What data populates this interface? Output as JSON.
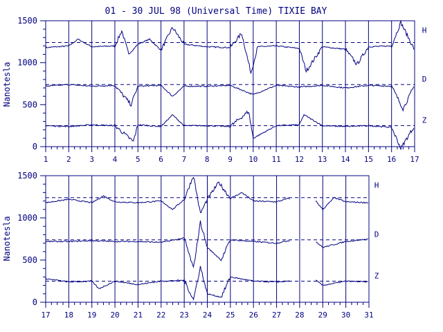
{
  "title": "01 - 30 JUL 98 (Universal Time) TIXIE BAY",
  "colors": {
    "ink": "#000080",
    "background": "#ffffff"
  },
  "chart_data": [
    {
      "type": "line",
      "panel": "top",
      "ylabel": "Nanotesla",
      "ylim": [
        0,
        1500
      ],
      "y_ticks": [
        "0",
        "500",
        "1000",
        "1500"
      ],
      "x_range_days": [
        1,
        17
      ],
      "x_tick_labels": [
        "1",
        "2",
        "3",
        "4",
        "5",
        "6",
        "7",
        "8",
        "9",
        "10",
        "11",
        "12",
        "13",
        "14",
        "15",
        "16",
        "17"
      ],
      "vertical_gridlines": "at each day",
      "reference_lines": [
        {
          "component": "H",
          "value": 1240
        },
        {
          "component": "D",
          "value": 740
        },
        {
          "component": "Z",
          "value": 250
        }
      ],
      "series": [
        {
          "name": "H",
          "baseline": 1190,
          "points": [
            [
              1,
              1180
            ],
            [
              2,
              1200
            ],
            [
              2.4,
              1280
            ],
            [
              3,
              1190
            ],
            [
              4,
              1200
            ],
            [
              4.3,
              1380
            ],
            [
              4.6,
              1100
            ],
            [
              5,
              1220
            ],
            [
              5.5,
              1280
            ],
            [
              6,
              1150
            ],
            [
              6.5,
              1420
            ],
            [
              7,
              1220
            ],
            [
              8,
              1190
            ],
            [
              9,
              1180
            ],
            [
              9.5,
              1350
            ],
            [
              9.9,
              880
            ],
            [
              10.2,
              1190
            ],
            [
              11,
              1200
            ],
            [
              12,
              1170
            ],
            [
              12.3,
              900
            ],
            [
              13,
              1190
            ],
            [
              14,
              1160
            ],
            [
              14.5,
              980
            ],
            [
              15,
              1190
            ],
            [
              16,
              1200
            ],
            [
              16.4,
              1480
            ],
            [
              17,
              1150
            ]
          ]
        },
        {
          "name": "D",
          "baseline": 720,
          "points": [
            [
              1,
              720
            ],
            [
              2,
              740
            ],
            [
              3,
              720
            ],
            [
              4,
              730
            ],
            [
              4.7,
              500
            ],
            [
              5,
              720
            ],
            [
              6,
              730
            ],
            [
              6.5,
              600
            ],
            [
              7,
              720
            ],
            [
              8,
              720
            ],
            [
              9,
              730
            ],
            [
              10,
              620
            ],
            [
              11,
              730
            ],
            [
              12,
              710
            ],
            [
              13,
              730
            ],
            [
              14,
              700
            ],
            [
              15,
              730
            ],
            [
              16,
              720
            ],
            [
              16.5,
              450
            ],
            [
              17,
              730
            ]
          ]
        },
        {
          "name": "Z",
          "baseline": 250,
          "points": [
            [
              1,
              250
            ],
            [
              2,
              240
            ],
            [
              3,
              260
            ],
            [
              4,
              250
            ],
            [
              4.8,
              60
            ],
            [
              5,
              260
            ],
            [
              6,
              240
            ],
            [
              6.5,
              380
            ],
            [
              7,
              250
            ],
            [
              8,
              250
            ],
            [
              9,
              240
            ],
            [
              9.8,
              420
            ],
            [
              10,
              100
            ],
            [
              11,
              250
            ],
            [
              12,
              260
            ],
            [
              12.2,
              380
            ],
            [
              13,
              250
            ],
            [
              14,
              240
            ],
            [
              15,
              250
            ],
            [
              16,
              230
            ],
            [
              16.4,
              -20
            ],
            [
              17,
              250
            ]
          ]
        }
      ],
      "series_labels": [
        "H",
        "D",
        "Z"
      ]
    },
    {
      "type": "line",
      "panel": "bottom",
      "ylabel": "Nanotesla",
      "ylim": [
        0,
        1500
      ],
      "y_ticks": [
        "0",
        "500",
        "1000",
        "1500"
      ],
      "x_range_days": [
        17,
        31
      ],
      "x_tick_labels": [
        "17",
        "18",
        "19",
        "20",
        "21",
        "22",
        "23",
        "24",
        "25",
        "26",
        "27",
        "28",
        "29",
        "30",
        "31"
      ],
      "vertical_gridlines": "at each day",
      "reference_lines": [
        {
          "component": "H",
          "value": 1240
        },
        {
          "component": "D",
          "value": 740
        },
        {
          "component": "Z",
          "value": 250
        }
      ],
      "data_gap_days": [
        27.6,
        28.7
      ],
      "series": [
        {
          "name": "H",
          "baseline": 1190,
          "points": [
            [
              17,
              1180
            ],
            [
              18,
              1220
            ],
            [
              19,
              1180
            ],
            [
              19.5,
              1260
            ],
            [
              20,
              1190
            ],
            [
              21,
              1180
            ],
            [
              22,
              1200
            ],
            [
              22.5,
              1100
            ],
            [
              23,
              1220
            ],
            [
              23.4,
              1500
            ],
            [
              23.7,
              1050
            ],
            [
              24,
              1220
            ],
            [
              24.5,
              1420
            ],
            [
              25,
              1230
            ],
            [
              25.5,
              1300
            ],
            [
              26,
              1200
            ],
            [
              27,
              1190
            ],
            [
              27.5,
              1230
            ],
            [
              28.7,
              1200
            ],
            [
              29,
              1100
            ],
            [
              29.5,
              1240
            ],
            [
              30,
              1190
            ],
            [
              31,
              1180
            ]
          ]
        },
        {
          "name": "D",
          "baseline": 720,
          "points": [
            [
              17,
              720
            ],
            [
              18,
              720
            ],
            [
              19,
              730
            ],
            [
              20,
              720
            ],
            [
              21,
              720
            ],
            [
              22,
              710
            ],
            [
              23,
              760
            ],
            [
              23.4,
              400
            ],
            [
              23.7,
              950
            ],
            [
              24,
              650
            ],
            [
              24.6,
              500
            ],
            [
              25,
              740
            ],
            [
              26,
              720
            ],
            [
              27,
              700
            ],
            [
              27.5,
              730
            ],
            [
              28.7,
              720
            ],
            [
              29,
              650
            ],
            [
              30,
              720
            ],
            [
              31,
              750
            ]
          ]
        },
        {
          "name": "Z",
          "baseline": 250,
          "points": [
            [
              17,
              280
            ],
            [
              18,
              240
            ],
            [
              19,
              250
            ],
            [
              19.3,
              160
            ],
            [
              20,
              250
            ],
            [
              21,
              210
            ],
            [
              22,
              250
            ],
            [
              23,
              260
            ],
            [
              23.4,
              30
            ],
            [
              23.7,
              420
            ],
            [
              24,
              100
            ],
            [
              24.6,
              60
            ],
            [
              25,
              300
            ],
            [
              26,
              250
            ],
            [
              27,
              240
            ],
            [
              27.5,
              250
            ],
            [
              28.7,
              260
            ],
            [
              29,
              200
            ],
            [
              30,
              250
            ],
            [
              31,
              240
            ]
          ]
        }
      ],
      "series_labels": [
        "H",
        "D",
        "Z"
      ]
    }
  ]
}
